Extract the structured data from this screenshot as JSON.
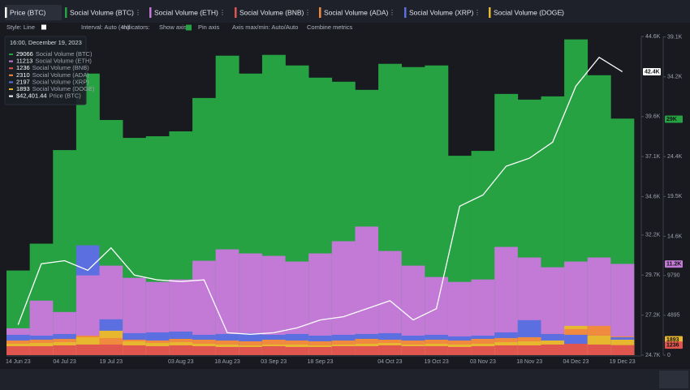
{
  "chart_data": {
    "type": "bar",
    "categories": [
      "14 Jun 23",
      null,
      "04 Jul 23",
      null,
      "19 Jul 23",
      null,
      null,
      "03 Aug 23",
      null,
      "18 Aug 23",
      null,
      "03 Sep 23",
      null,
      "18 Sep 23",
      null,
      null,
      "04 Oct 23",
      null,
      "19 Oct 23",
      null,
      "03 Nov 23",
      null,
      "18 Nov 23",
      null,
      "04 Dec 23",
      null,
      "19 Dec 23"
    ],
    "series": [
      {
        "name": "Price (BTC)",
        "type": "line",
        "axis": "y",
        "color": "#ffffff",
        "values": [
          26600,
          30400,
          30600,
          30000,
          31400,
          29700,
          29400,
          29300,
          29400,
          26100,
          26000,
          26100,
          26400,
          26900,
          27100,
          27600,
          28100,
          26900,
          27600,
          34000,
          34700,
          36500,
          37000,
          38000,
          41500,
          43300,
          42401.44
        ]
      },
      {
        "name": "Social Volume (BTC)",
        "axis": "y2",
        "color": "#26a243",
        "values": [
          10400,
          13700,
          25200,
          34600,
          28900,
          26700,
          26900,
          27500,
          31600,
          36800,
          34600,
          36900,
          35600,
          34100,
          33600,
          32600,
          35800,
          35400,
          35600,
          24500,
          25100,
          32100,
          31400,
          31800,
          38800,
          34400,
          29066
        ]
      },
      {
        "name": "Social Volume (ETH)",
        "axis": "y2",
        "color": "#c27ad6",
        "values": [
          3300,
          6700,
          5300,
          9800,
          11000,
          9500,
          9000,
          9300,
          11600,
          13000,
          12500,
          12200,
          11500,
          12500,
          14000,
          15800,
          12800,
          11000,
          9600,
          9000,
          9300,
          13300,
          12000,
          10800,
          11500,
          12000,
          11213
        ]
      },
      {
        "name": "Social Volume (BNB)",
        "axis": "y2",
        "color": "#e0564e",
        "values": [
          1100,
          1100,
          1200,
          1300,
          1300,
          1200,
          1100,
          1200,
          1100,
          1000,
          1000,
          1100,
          1000,
          1000,
          1100,
          1100,
          1200,
          1100,
          1100,
          1000,
          1100,
          1200,
          1200,
          1300,
          1400,
          1300,
          1236
        ]
      },
      {
        "name": "Social Volume (ADA)",
        "axis": "y2",
        "color": "#f08a3e",
        "values": [
          1800,
          1900,
          2000,
          2400,
          2100,
          1900,
          1800,
          2000,
          1900,
          1800,
          1700,
          1900,
          1800,
          1700,
          1800,
          2000,
          1900,
          1800,
          1900,
          1800,
          2000,
          2100,
          2200,
          2600,
          3200,
          3600,
          2310
        ]
      },
      {
        "name": "Social Volume (XRP)",
        "axis": "y2",
        "color": "#5b6fe0",
        "values": [
          2500,
          2400,
          2600,
          13500,
          4400,
          2700,
          2800,
          2900,
          2500,
          2600,
          2700,
          2500,
          2600,
          2400,
          2500,
          2600,
          2700,
          2400,
          2500,
          2300,
          2400,
          2800,
          4300,
          2600,
          2500,
          2400,
          2197
        ]
      },
      {
        "name": "Social Volume (DOGE)",
        "axis": "y2",
        "color": "#e8b730",
        "values": [
          1400,
          1500,
          1600,
          2200,
          3000,
          1700,
          1500,
          1600,
          1400,
          1300,
          1200,
          1300,
          1300,
          1200,
          1300,
          1400,
          1500,
          1300,
          1400,
          1300,
          1400,
          1600,
          1700,
          1800,
          3600,
          2400,
          1893
        ]
      }
    ],
    "ylim": [
      24700,
      44600
    ],
    "yticks": [
      {
        "value": 24700,
        "label": "24.7K"
      },
      {
        "value": 27200,
        "label": "27.2K"
      },
      {
        "value": 29700,
        "label": "29.7K"
      },
      {
        "value": 32200,
        "label": "32.2K"
      },
      {
        "value": 34600,
        "label": "34.6K"
      },
      {
        "value": 37100,
        "label": "37.1K"
      },
      {
        "value": 39600,
        "label": "39.6K"
      },
      {
        "value": 44600,
        "label": "44.6K"
      }
    ],
    "y2lim": [
      0,
      39160
    ],
    "y2ticks": [
      0,
      4895,
      9790,
      {
        "value": 14600,
        "label": "14.6K"
      },
      {
        "value": 19500,
        "label": "19.5K"
      },
      {
        "value": 24400,
        "label": "24.4K"
      },
      {
        "value": 34200,
        "label": "34.2K"
      },
      {
        "value": 39100,
        "label": "39.1K"
      }
    ],
    "markers": [
      {
        "value": 42400,
        "label": "42.4K",
        "axis": "y",
        "color": "#ffffff"
      },
      {
        "value": 29000,
        "label": "29K",
        "axis": "y2",
        "color": "#26a243"
      },
      {
        "value": 11200,
        "label": "11.2K",
        "axis": "y2",
        "color": "#c27ad6"
      },
      {
        "value": 1893,
        "label": "1893",
        "axis": "y2",
        "color": "#e8b730"
      },
      {
        "value": 1236,
        "label": "1236",
        "axis": "y2",
        "color": "#e0564e"
      }
    ]
  },
  "toolbar": [
    "Style: Line",
    "Interval: Auto (4h)",
    "Indicators:",
    "Show axis",
    "Pin axis",
    "Axis max/min: Auto/Auto",
    "Combine metrics"
  ],
  "tooltip": {
    "title": "16:00, December 19, 2023",
    "rows": [
      {
        "value": "29066",
        "label": "Social Volume (BTC)"
      },
      {
        "value": "11213",
        "label": "Social Volume (ETH)"
      },
      {
        "value": "1236",
        "label": "Social Volume (BNB)"
      },
      {
        "value": "2310",
        "label": "Social Volume (ADA)"
      },
      {
        "value": "2197",
        "label": "Social Volume (XRP)"
      },
      {
        "value": "1893",
        "label": "Social Volume (DOGE)"
      },
      {
        "value": "$42,401.44",
        "label": "Price (BTC)"
      }
    ]
  }
}
